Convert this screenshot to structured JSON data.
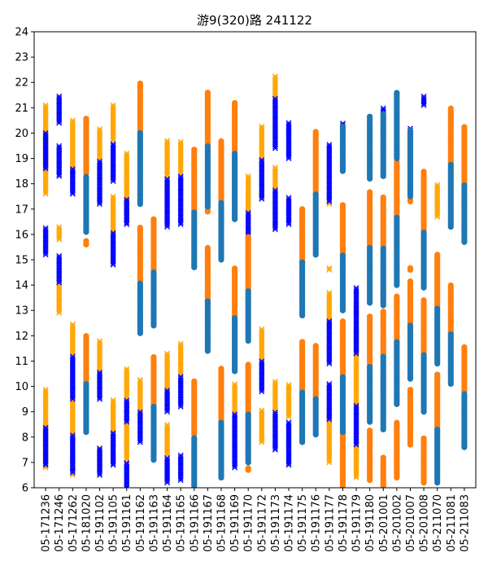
{
  "chart_data": {
    "type": "scatter",
    "title": "游9(320)路 241122",
    "xlabel": "",
    "ylabel": "",
    "ylim": [
      6,
      24
    ],
    "yticks": [
      6,
      7,
      8,
      9,
      10,
      11,
      12,
      13,
      14,
      15,
      16,
      17,
      18,
      19,
      20,
      21,
      22,
      23,
      24
    ],
    "grid": false,
    "categories": [
      "05-171236",
      "05-171246",
      "05-171262",
      "05-181020",
      "05-191102",
      "05-191105",
      "05-191161",
      "05-191162",
      "05-191163",
      "05-191164",
      "05-191165",
      "05-191166",
      "05-191167",
      "05-191168",
      "05-191169",
      "05-191170",
      "05-191172",
      "05-191173",
      "05-191174",
      "05-191175",
      "05-191176",
      "05-191177",
      "05-191178",
      "05-191179",
      "05-191180",
      "05-201001",
      "05-201002",
      "05-201007",
      "05-201008",
      "05-211070",
      "05-211081",
      "05-211083"
    ],
    "colors": {
      "blue_dot": "#1f77b4",
      "orange_dot": "#ff7f0e",
      "blue_x": "#0000ff",
      "orange_x": "#ffa500"
    },
    "series": [
      {
        "marker": "x",
        "color": "orange_x",
        "segments": [
          [
            0,
            17.6,
            21.1
          ],
          [
            0,
            6.8,
            9.9
          ],
          [
            1,
            12.9,
            14.1
          ],
          [
            1,
            15.8,
            16.3
          ],
          [
            2,
            18.4,
            20.5
          ],
          [
            2,
            8.1,
            9.5
          ],
          [
            2,
            11.2,
            12.5
          ],
          [
            2,
            6.5,
            6.6
          ],
          [
            4,
            18.9,
            20.2
          ],
          [
            4,
            10.6,
            11.8
          ],
          [
            4,
            6.8,
            7.6
          ],
          [
            5,
            19.7,
            21.1
          ],
          [
            5,
            16.1,
            17.5
          ],
          [
            5,
            8.2,
            9.5
          ],
          [
            6,
            16.4,
            19.2
          ],
          [
            6,
            9.5,
            10.7
          ],
          [
            6,
            7.1,
            8.6
          ],
          [
            7,
            9.0,
            10.3
          ],
          [
            9,
            18.3,
            19.7
          ],
          [
            9,
            9.9,
            11.3
          ],
          [
            9,
            7.3,
            8.5
          ],
          [
            10,
            18.4,
            19.7
          ],
          [
            10,
            10.5,
            11.7
          ],
          [
            14,
            8.9,
            10.1
          ],
          [
            15,
            16.9,
            18.3
          ],
          [
            16,
            19.0,
            20.3
          ],
          [
            16,
            11.0,
            12.3
          ],
          [
            16,
            7.8,
            9.1
          ],
          [
            17,
            21.4,
            22.3
          ],
          [
            17,
            17.8,
            18.7
          ],
          [
            17,
            9.0,
            10.2
          ],
          [
            18,
            8.8,
            10.1
          ],
          [
            21,
            17.2,
            17.3
          ],
          [
            21,
            14.6,
            14.7
          ],
          [
            21,
            12.3,
            13.7
          ],
          [
            21,
            7.0,
            8.9
          ],
          [
            22,
            7.2,
            9.0
          ],
          [
            23,
            12.8,
            13.1
          ],
          [
            23,
            9.3,
            12.3
          ],
          [
            23,
            6.4,
            7.7
          ],
          [
            25,
            6.1,
            6.6
          ],
          [
            26,
            6.5,
            7.2
          ],
          [
            29,
            16.7,
            18.0
          ],
          [
            29,
            6.6,
            7.5
          ]
        ]
      },
      {
        "marker": "x",
        "color": "blue_x",
        "segments": [
          [
            0,
            18.6,
            20.0
          ],
          [
            0,
            15.2,
            16.3
          ],
          [
            0,
            6.9,
            8.4
          ],
          [
            1,
            20.4,
            21.5
          ],
          [
            1,
            18.3,
            19.5
          ],
          [
            1,
            14.1,
            15.2
          ],
          [
            2,
            17.6,
            18.6
          ],
          [
            2,
            9.5,
            11.2
          ],
          [
            2,
            6.6,
            8.1
          ],
          [
            4,
            17.2,
            18.9
          ],
          [
            4,
            9.5,
            10.6
          ],
          [
            4,
            6.5,
            7.6
          ],
          [
            5,
            18.1,
            19.6
          ],
          [
            5,
            14.8,
            16.1
          ],
          [
            5,
            6.9,
            8.2
          ],
          [
            6,
            16.4,
            17.4
          ],
          [
            6,
            6.0,
            7.0
          ],
          [
            6,
            8.6,
            9.5
          ],
          [
            7,
            7.8,
            9.0
          ],
          [
            9,
            16.3,
            18.2
          ],
          [
            9,
            9.0,
            9.9
          ],
          [
            9,
            6.2,
            7.2
          ],
          [
            10,
            16.4,
            18.3
          ],
          [
            10,
            9.2,
            10.4
          ],
          [
            10,
            6.3,
            7.3
          ],
          [
            14,
            6.8,
            8.9
          ],
          [
            15,
            15.8,
            16.9
          ],
          [
            16,
            17.4,
            19.0
          ],
          [
            16,
            9.8,
            11.0
          ],
          [
            17,
            16.2,
            17.8
          ],
          [
            17,
            19.4,
            21.4
          ],
          [
            17,
            7.5,
            9.0
          ],
          [
            18,
            16.4,
            17.5
          ],
          [
            18,
            19.0,
            20.4
          ],
          [
            18,
            6.9,
            8.6
          ],
          [
            21,
            17.3,
            19.6
          ],
          [
            21,
            8.7,
            10.1
          ],
          [
            21,
            10.9,
            12.6
          ],
          [
            22,
            20.1,
            20.4
          ],
          [
            23,
            11.3,
            13.9
          ],
          [
            23,
            7.7,
            9.3
          ],
          [
            25,
            20.7,
            21.0
          ],
          [
            27,
            19.9,
            20.2
          ],
          [
            28,
            21.1,
            21.5
          ]
        ]
      },
      {
        "marker": "o",
        "color": "orange_dot",
        "segments": [
          [
            3,
            18.4,
            20.6
          ],
          [
            3,
            15.6,
            15.8
          ],
          [
            3,
            10.1,
            12.0
          ],
          [
            7,
            20.0,
            22.0
          ],
          [
            7,
            14.1,
            16.3
          ],
          [
            8,
            14.5,
            16.6
          ],
          [
            8,
            9.2,
            11.2
          ],
          [
            11,
            16.9,
            19.4
          ],
          [
            11,
            8.1,
            10.2
          ],
          [
            12,
            19.5,
            21.6
          ],
          [
            12,
            13.3,
            15.5
          ],
          [
            12,
            16.9,
            17.0
          ],
          [
            13,
            17.3,
            19.7
          ],
          [
            13,
            8.6,
            10.7
          ],
          [
            14,
            19.3,
            21.2
          ],
          [
            14,
            12.7,
            14.7
          ],
          [
            15,
            13.8,
            15.9
          ],
          [
            15,
            8.9,
            10.9
          ],
          [
            15,
            6.7,
            6.8
          ],
          [
            19,
            14.9,
            17.0
          ],
          [
            19,
            9.8,
            11.8
          ],
          [
            20,
            17.6,
            20.1
          ],
          [
            20,
            9.5,
            11.6
          ],
          [
            22,
            15.2,
            17.2
          ],
          [
            22,
            10.4,
            12.6
          ],
          [
            22,
            6.0,
            8.4
          ],
          [
            24,
            15.5,
            17.7
          ],
          [
            24,
            10.8,
            12.8
          ],
          [
            24,
            6.3,
            8.3
          ],
          [
            25,
            15.5,
            17.5
          ],
          [
            25,
            13.6,
            13.8
          ],
          [
            25,
            11.2,
            13.0
          ],
          [
            25,
            6.0,
            7.2
          ],
          [
            26,
            16.7,
            18.9
          ],
          [
            26,
            11.8,
            13.6
          ],
          [
            26,
            6.4,
            8.6
          ],
          [
            27,
            17.3,
            17.4
          ],
          [
            27,
            14.6,
            14.7
          ],
          [
            27,
            12.4,
            14.2
          ],
          [
            27,
            7.7,
            9.9
          ],
          [
            28,
            16.1,
            18.5
          ],
          [
            28,
            11.3,
            13.4
          ],
          [
            28,
            6.2,
            8.0
          ],
          [
            29,
            13.1,
            15.2
          ],
          [
            29,
            8.3,
            10.5
          ],
          [
            30,
            18.8,
            21.0
          ],
          [
            30,
            12.1,
            14.0
          ],
          [
            31,
            18.0,
            20.3
          ],
          [
            31,
            9.8,
            11.6
          ]
        ]
      },
      {
        "marker": "o",
        "color": "blue_dot",
        "segments": [
          [
            3,
            16.1,
            18.3
          ],
          [
            3,
            8.2,
            10.1
          ],
          [
            7,
            17.2,
            20.0
          ],
          [
            7,
            12.1,
            14.1
          ],
          [
            8,
            12.4,
            14.5
          ],
          [
            8,
            7.1,
            9.2
          ],
          [
            11,
            14.7,
            16.9
          ],
          [
            11,
            6.0,
            8.0
          ],
          [
            12,
            17.1,
            19.5
          ],
          [
            12,
            11.4,
            13.4
          ],
          [
            13,
            15.0,
            17.3
          ],
          [
            13,
            6.4,
            8.6
          ],
          [
            14,
            16.6,
            19.2
          ],
          [
            14,
            10.6,
            12.7
          ],
          [
            15,
            11.8,
            13.8
          ],
          [
            15,
            7.0,
            8.9
          ],
          [
            19,
            12.8,
            14.9
          ],
          [
            19,
            7.8,
            9.8
          ],
          [
            20,
            15.2,
            17.6
          ],
          [
            20,
            8.1,
            9.5
          ],
          [
            22,
            18.5,
            20.3
          ],
          [
            22,
            13.0,
            15.2
          ],
          [
            22,
            8.2,
            10.4
          ],
          [
            24,
            18.2,
            20.7
          ],
          [
            24,
            13.3,
            15.5
          ],
          [
            24,
            8.6,
            10.8
          ],
          [
            25,
            18.3,
            20.8
          ],
          [
            25,
            13.2,
            15.5
          ],
          [
            25,
            8.3,
            11.2
          ],
          [
            26,
            19.0,
            21.6
          ],
          [
            26,
            14.0,
            16.7
          ],
          [
            26,
            9.3,
            11.8
          ],
          [
            27,
            17.5,
            20.1
          ],
          [
            27,
            10.3,
            12.4
          ],
          [
            28,
            13.9,
            16.1
          ],
          [
            28,
            9.0,
            11.3
          ],
          [
            29,
            10.9,
            13.1
          ],
          [
            29,
            6.2,
            8.3
          ],
          [
            30,
            16.3,
            18.8
          ],
          [
            30,
            10.1,
            12.1
          ],
          [
            31,
            15.7,
            18.0
          ],
          [
            31,
            7.6,
            9.7
          ]
        ]
      }
    ]
  }
}
